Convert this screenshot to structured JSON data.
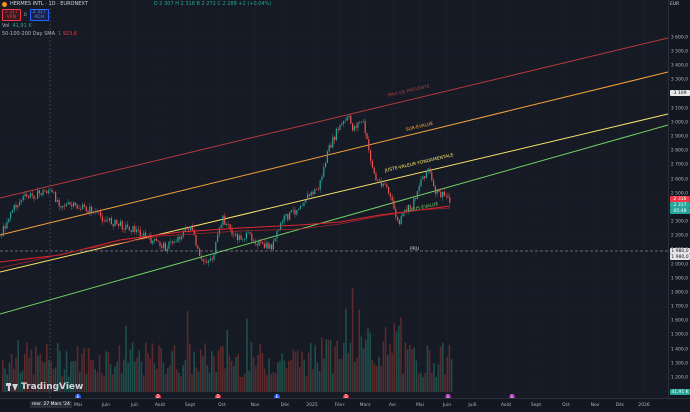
{
  "header": {
    "symbol_title": "HERMES INTL · 1D · EURONEXT",
    "ohlc_text": "O 2 307  H 2 318  B 2 272  C 2 288 +1 (+0,04%)",
    "sell_price": "2 317",
    "sell_label": "VEN",
    "buy_price": "2 317",
    "buy_label": "ACH",
    "spread": "0",
    "volume_label": "Vol",
    "volume_value": "41,91 K",
    "sma_label": "50-100-200 Day SMA",
    "sma_value": "1 923,6"
  },
  "currency": "EUR",
  "price_axis": {
    "ticks": [
      "3 600,0",
      "3 500,0",
      "3 400,0",
      "3 300,0",
      "3 200,0",
      "3 100,0",
      "3 000,0",
      "2 900,0",
      "2 800,0",
      "2 700,0",
      "2 600,0",
      "2 500,0",
      "2 400,0",
      "2 300,0",
      "2 200,0",
      "2 100,0",
      "2 000,0",
      "1 900,0",
      "1 800,0",
      "1 700,0",
      "1 600,0",
      "1 500,0",
      "1 400,0",
      "1 300,0",
      "1 200,0",
      "1 100,0"
    ],
    "tag_top": "3 109",
    "tag_price_red": "2 316",
    "tag_price_green": "2 317",
    "tag_countdown": "05:48",
    "tag_pru_a": "1 980,0",
    "tag_pru_b": "1 980,0",
    "tag_volume": "41,91 K"
  },
  "date_axis": {
    "highlight": "mer. 27 Mars '24",
    "labels": [
      "Mai",
      "Juin",
      "Juil.",
      "Août",
      "Sept",
      "Oct",
      "Nov",
      "Déc",
      "2025",
      "Févr.",
      "Mars",
      "Avr.",
      "Mai",
      "Juin",
      "Juill.",
      "Août",
      "Sept",
      "Oct",
      "Nov",
      "Déc",
      "2026"
    ]
  },
  "channel_labels": {
    "top": "PRIX DE PRÉVENTE",
    "upper": "SUR-ÉVALUÉ",
    "middle": "JUSTE-VALEUR FONDAMENTALE",
    "lower": "SOUS-ÉVALUÉ",
    "pru": "PRU"
  },
  "brand": "TradingView",
  "colors": {
    "background": "#161a25",
    "up": "#26a69a",
    "down": "#ef5350",
    "top_line": "#b33a3a",
    "upper_line": "#f5a33b",
    "middle_line": "#f7e26b",
    "lower_line": "#6fcf62",
    "sma": "#e0262d"
  }
}
